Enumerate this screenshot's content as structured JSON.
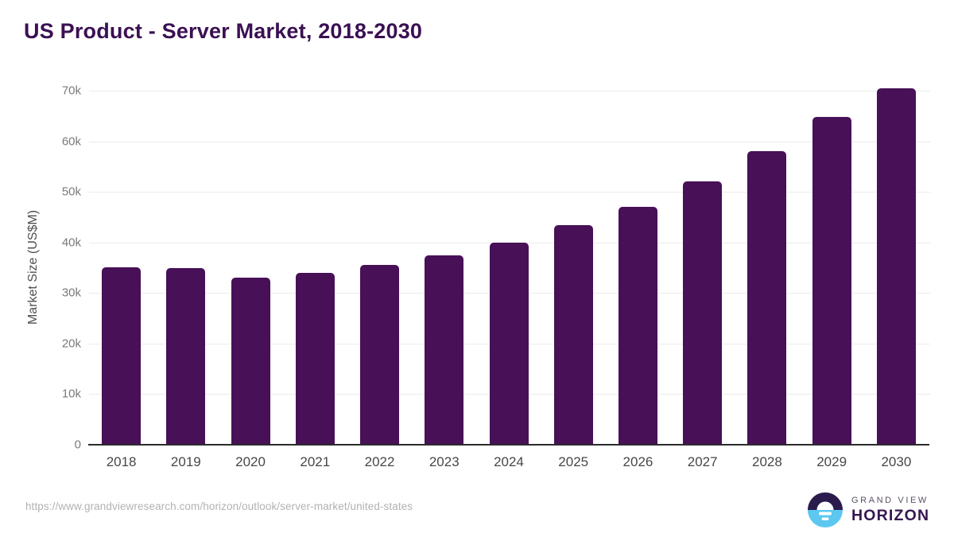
{
  "page": {
    "title": "US Product - Server Market, 2018-2030"
  },
  "chart_data": {
    "type": "bar",
    "title": "US Product - Server Market, 2018-2030",
    "xlabel": "",
    "ylabel": "Market Size (US$M)",
    "categories": [
      "2018",
      "2019",
      "2020",
      "2021",
      "2022",
      "2023",
      "2024",
      "2025",
      "2026",
      "2027",
      "2028",
      "2029",
      "2030"
    ],
    "values": [
      35100,
      34900,
      33000,
      34000,
      35500,
      37500,
      40000,
      43400,
      47000,
      52100,
      58000,
      64800,
      70400
    ],
    "unit": "US$M",
    "ylim": [
      0,
      70000
    ],
    "ytick_step": 10000,
    "ytick_labels": [
      "0",
      "10k",
      "20k",
      "30k",
      "40k",
      "50k",
      "60k",
      "70k"
    ],
    "grid": "horizontal",
    "legend": "none",
    "bar_color": "#471057"
  },
  "footer": {
    "source_url": "https://www.grandviewresearch.com/horizon/outlook/server-market/united-states",
    "logo": {
      "brand_top": "GRAND VIEW",
      "brand_bottom": "HORIZON",
      "icon": "horizon-sunrise-icon",
      "icon_colors": {
        "top_half": "#2b1b4d",
        "bottom_half": "#5cc8f0",
        "glyph": "#ffffff"
      }
    }
  },
  "colors": {
    "title_text": "#3b1053",
    "bar_fill": "#471057",
    "gridline": "#ebebeb",
    "axis_line": "#2b2b2b",
    "y_tick_text": "#7a7a7a",
    "x_tick_text": "#474747",
    "url_text": "#b2b2b2"
  }
}
